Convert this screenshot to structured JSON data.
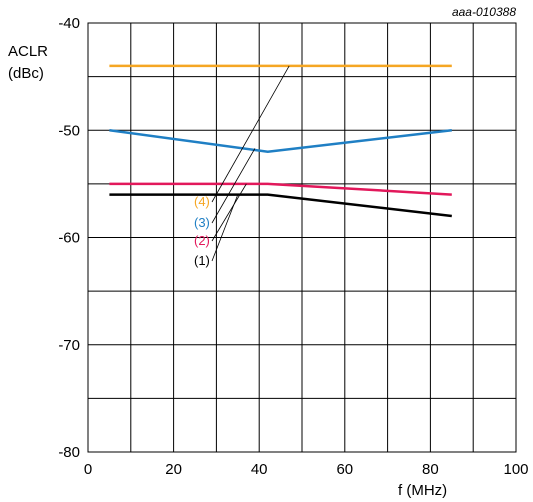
{
  "chart_data": {
    "type": "line",
    "code": "aaa-010388",
    "ylabel_line1": "ACLR",
    "ylabel_line2": "(dBc)",
    "xlabel": "f (MHz)",
    "xlim": [
      0,
      100
    ],
    "ylim": [
      -80,
      -40
    ],
    "xticks": [
      0,
      20,
      40,
      60,
      80,
      100
    ],
    "yticks": [
      -40,
      -50,
      -60,
      -70,
      -80
    ],
    "grid": true,
    "x_grid_step": 10,
    "y_grid_step": 5,
    "series": [
      {
        "name": "(4)",
        "color": "#f5a623",
        "x": [
          5,
          42,
          85
        ],
        "y": [
          -44,
          -44,
          -44
        ],
        "callout_point": [
          47,
          -44
        ]
      },
      {
        "name": "(3)",
        "color": "#1f7fc4",
        "x": [
          5,
          42,
          85
        ],
        "y": [
          -50,
          -52,
          -50
        ],
        "callout_point": [
          39,
          -51.7
        ]
      },
      {
        "name": "(2)",
        "color": "#e2185b",
        "x": [
          5,
          42,
          85
        ],
        "y": [
          -55,
          -55,
          -56
        ],
        "callout_point": [
          37,
          -55
        ]
      },
      {
        "name": "(1)",
        "color": "#000000",
        "x": [
          5,
          42,
          85
        ],
        "y": [
          -56,
          -56,
          -58
        ],
        "callout_point": [
          35,
          -56
        ]
      }
    ]
  }
}
